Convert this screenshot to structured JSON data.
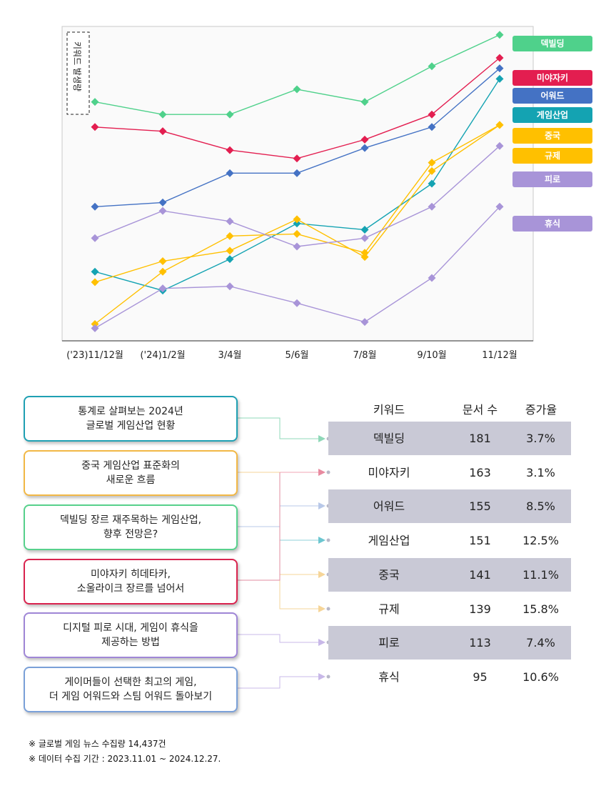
{
  "chart_data": {
    "type": "line",
    "ylabel": "키워드 발생량",
    "categories": [
      "('23)11/12월",
      "('24)1/2월",
      "3/4월",
      "5/6월",
      "7/8월",
      "9/10월",
      "11/12월"
    ],
    "series": [
      {
        "name": "덱빌딩",
        "color": "#4fd18b",
        "values": [
          74,
          68,
          68,
          80,
          74,
          91,
          106
        ]
      },
      {
        "name": "미야자키",
        "color": "#e31e50",
        "values": [
          62,
          60,
          51,
          47,
          56,
          68,
          95
        ]
      },
      {
        "name": "어워드",
        "color": "#4472c4",
        "values": [
          24,
          26,
          40,
          40,
          52,
          62,
          90
        ]
      },
      {
        "name": "게임산업",
        "color": "#14a3b2",
        "values": [
          -7,
          -16,
          -1,
          16,
          13,
          35,
          85
        ]
      },
      {
        "name": "중국",
        "color": "#ffc000",
        "values": [
          -12,
          -2,
          3,
          18,
          0,
          41,
          63
        ]
      },
      {
        "name": "규제",
        "color": "#ffc000",
        "values": [
          -32,
          -7,
          10,
          11,
          2,
          45,
          63
        ]
      },
      {
        "name": "피로",
        "color": "#a894d8",
        "values": [
          9,
          22,
          17,
          5,
          9,
          24,
          53
        ]
      },
      {
        "name": "휴식",
        "color": "#a894d8",
        "values": [
          -34,
          -15,
          -14,
          -22,
          -31,
          -10,
          24
        ]
      }
    ],
    "ylim": [
      -40,
      110
    ],
    "grid": false,
    "legend_position": "right"
  },
  "articles": [
    {
      "line1": "통계로 살펴보는 2024년",
      "line2": "글로벌 게임산업 현황",
      "border": "#1fa0b3"
    },
    {
      "line1": "중국 게임산업 표준화의",
      "line2": "새로운 흐름",
      "border": "#f2b846"
    },
    {
      "line1": "덱빌딩 장르 재주목하는 게임산업,",
      "line2": "향후 전망은?",
      "border": "#57d18c"
    },
    {
      "line1": "미야자키 히데타카,",
      "line2": "소울라이크 장르를 넘어서",
      "border": "#d9234e"
    },
    {
      "line1": "디지털 피로 시대, 게임이 휴식을",
      "line2": "제공하는 방법",
      "border": "#9f86d6"
    },
    {
      "line1": "게이머들이 선택한 최고의 게임,",
      "line2": "더 게임 어워드와 스팀 어워드 돌아보기",
      "border": "#7aa0d8"
    }
  ],
  "table": {
    "headers": [
      "키워드",
      "문서 수",
      "증가율"
    ],
    "rows": [
      {
        "keyword": "덱빌딩",
        "docs": "181",
        "rate": "3.7%"
      },
      {
        "keyword": "미야자키",
        "docs": "163",
        "rate": "3.1%"
      },
      {
        "keyword": "어워드",
        "docs": "155",
        "rate": "8.5%"
      },
      {
        "keyword": "게임산업",
        "docs": "151",
        "rate": "12.5%"
      },
      {
        "keyword": "중국",
        "docs": "141",
        "rate": "11.1%"
      },
      {
        "keyword": "규제",
        "docs": "139",
        "rate": "15.8%"
      },
      {
        "keyword": "피로",
        "docs": "113",
        "rate": "7.4%"
      },
      {
        "keyword": "휴식",
        "docs": "95",
        "rate": "10.6%"
      }
    ]
  },
  "notes": {
    "line1": "※ 글로벌 게임 뉴스 수집량 14,437건",
    "line2": "※ 데이터 수집 기간 : 2023.11.01 ~ 2024.12.27."
  }
}
